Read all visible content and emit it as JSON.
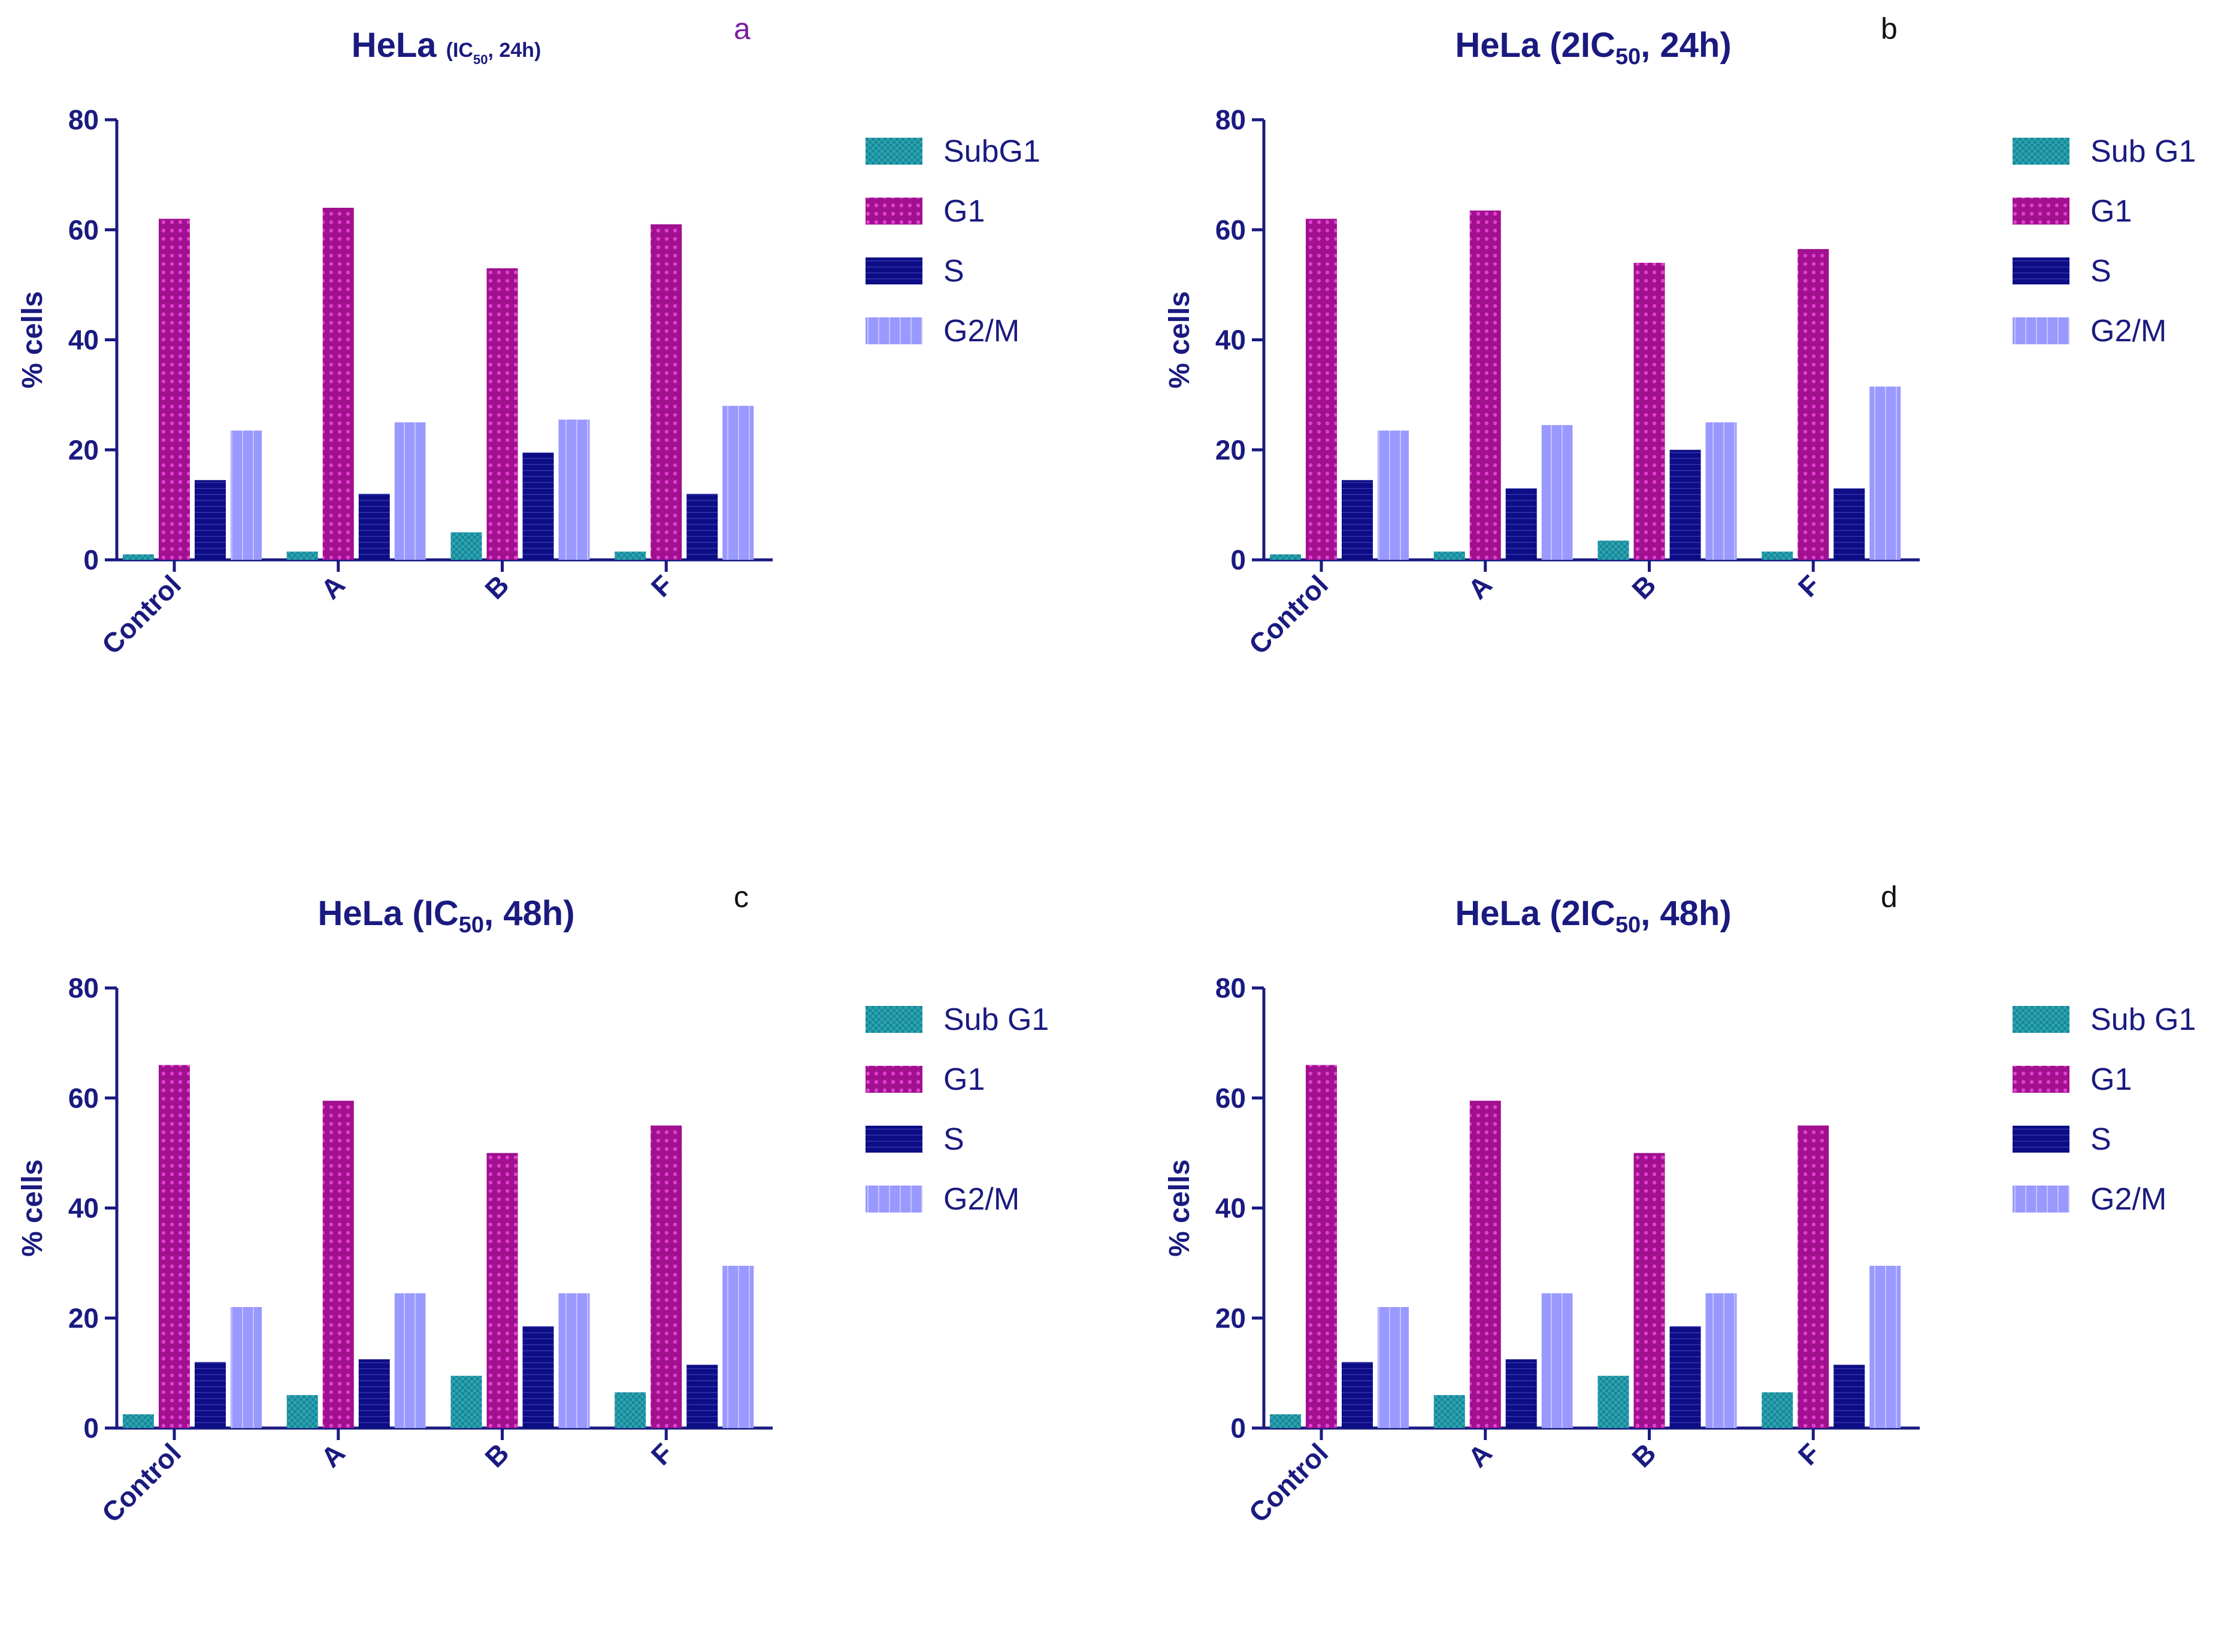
{
  "colors": {
    "axis": "#1a1a80",
    "subg1": "#178a9a",
    "g1": "#a0108f",
    "s": "#0d0d85",
    "g2m": "#9999ff",
    "letter_a": "#7a1fa0",
    "letter_other": "#111111"
  },
  "chart_data": [
    {
      "type": "bar",
      "panel_letter": "a",
      "title_main": "HeLa",
      "title_paren": "(IC",
      "title_sub": "50",
      "title_rest": ", 24h)",
      "title_small": true,
      "ylabel": "% cells",
      "ylim": [
        0,
        80
      ],
      "yticks": [
        "0",
        "20",
        "40",
        "60",
        "80"
      ],
      "categories": [
        "Control",
        "A",
        "B",
        "F"
      ],
      "series": [
        {
          "name": "SubG1",
          "key": "subg1",
          "values": [
            1,
            1.5,
            5,
            1.5
          ]
        },
        {
          "name": "G1",
          "key": "g1",
          "values": [
            62,
            64,
            53,
            61
          ]
        },
        {
          "name": "S",
          "key": "s",
          "values": [
            14.5,
            12,
            19.5,
            12
          ]
        },
        {
          "name": "G2/M",
          "key": "g2m",
          "values": [
            23.5,
            25,
            25.5,
            28
          ]
        }
      ]
    },
    {
      "type": "bar",
      "panel_letter": "b",
      "title_main": "HeLa",
      "title_paren": "(2IC",
      "title_sub": "50",
      "title_rest": ", 24h)",
      "title_small": false,
      "ylabel": "% cells",
      "ylim": [
        0,
        80
      ],
      "yticks": [
        "0",
        "20",
        "40",
        "60",
        "80"
      ],
      "categories": [
        "Control",
        "A",
        "B",
        "F"
      ],
      "series": [
        {
          "name": "Sub G1",
          "key": "subg1",
          "values": [
            1,
            1.5,
            3.5,
            1.5
          ]
        },
        {
          "name": "G1",
          "key": "g1",
          "values": [
            62,
            63.5,
            54,
            56.5
          ]
        },
        {
          "name": "S",
          "key": "s",
          "values": [
            14.5,
            13,
            20,
            13
          ]
        },
        {
          "name": "G2/M",
          "key": "g2m",
          "values": [
            23.5,
            24.5,
            25,
            31.5
          ]
        }
      ]
    },
    {
      "type": "bar",
      "panel_letter": "c",
      "title_main": "HeLa",
      "title_paren": "(IC",
      "title_sub": "50",
      "title_rest": ", 48h)",
      "title_small": false,
      "ylabel": "% cells",
      "ylim": [
        0,
        80
      ],
      "yticks": [
        "0",
        "20",
        "40",
        "60",
        "80"
      ],
      "categories": [
        "Control",
        "A",
        "B",
        "F"
      ],
      "series": [
        {
          "name": "Sub G1",
          "key": "subg1",
          "values": [
            2.5,
            6,
            9.5,
            6.5
          ]
        },
        {
          "name": "G1",
          "key": "g1",
          "values": [
            66,
            59.5,
            50,
            55
          ]
        },
        {
          "name": "S",
          "key": "s",
          "values": [
            12,
            12.5,
            18.5,
            11.5
          ]
        },
        {
          "name": "G2/M",
          "key": "g2m",
          "values": [
            22,
            24.5,
            24.5,
            29.5
          ]
        }
      ]
    },
    {
      "type": "bar",
      "panel_letter": "d",
      "title_main": "HeLa",
      "title_paren": "(2IC",
      "title_sub": "50",
      "title_rest": ", 48h)",
      "title_small": false,
      "ylabel": "% cells",
      "ylim": [
        0,
        80
      ],
      "yticks": [
        "0",
        "20",
        "40",
        "60",
        "80"
      ],
      "categories": [
        "Control",
        "A",
        "B",
        "F"
      ],
      "series": [
        {
          "name": "Sub G1",
          "key": "subg1",
          "values": [
            2.5,
            6,
            9.5,
            6.5
          ]
        },
        {
          "name": "G1",
          "key": "g1",
          "values": [
            66,
            59.5,
            50,
            55
          ]
        },
        {
          "name": "S",
          "key": "s",
          "values": [
            12,
            12.5,
            18.5,
            11.5
          ]
        },
        {
          "name": "G2/M",
          "key": "g2m",
          "values": [
            22,
            24.5,
            24.5,
            29.5
          ]
        }
      ]
    }
  ]
}
